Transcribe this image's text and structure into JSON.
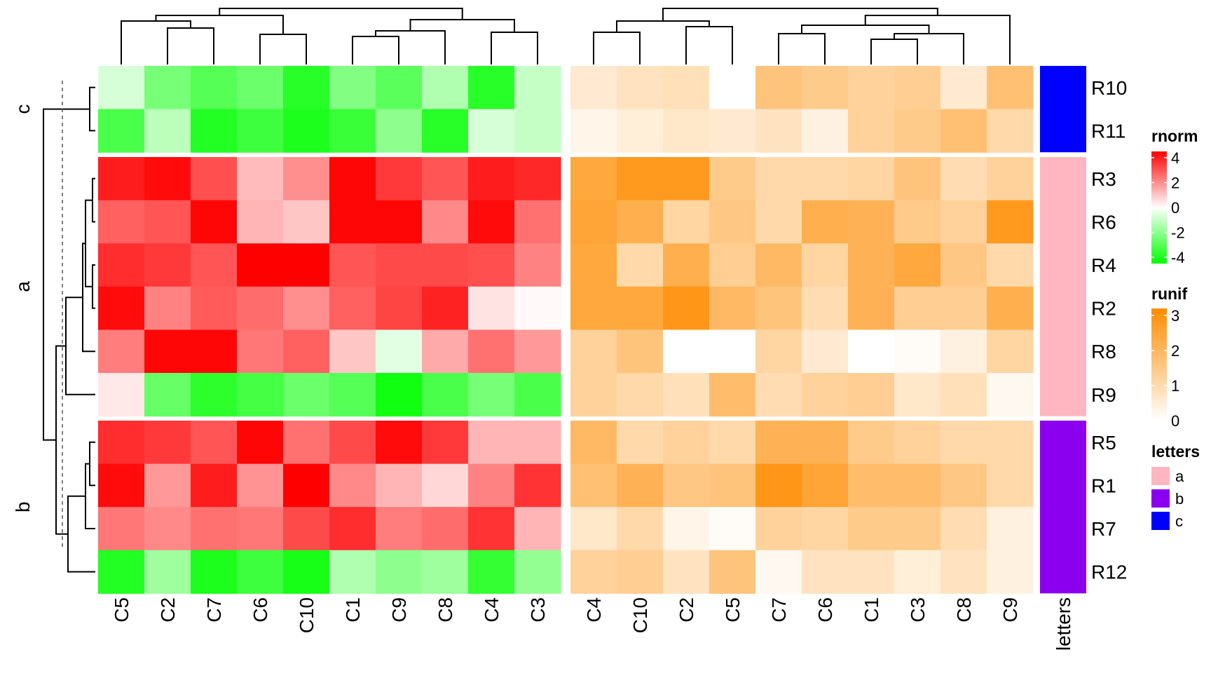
{
  "chart_data": {
    "type": "heatmap",
    "row_labels": [
      "R10",
      "R11",
      "R3",
      "R6",
      "R4",
      "R2",
      "R8",
      "R9",
      "R5",
      "R1",
      "R7",
      "R12"
    ],
    "row_groups": [
      {
        "label": "c",
        "rows": [
          "R10",
          "R11"
        ]
      },
      {
        "label": "a",
        "rows": [
          "R3",
          "R6",
          "R4",
          "R2",
          "R8",
          "R9"
        ]
      },
      {
        "label": "b",
        "rows": [
          "R5",
          "R1",
          "R7",
          "R12"
        ]
      }
    ],
    "heatmaps": [
      {
        "name": "rnorm",
        "columns": [
          "C5",
          "C2",
          "C7",
          "C6",
          "C10",
          "C1",
          "C9",
          "C8",
          "C4",
          "C3"
        ],
        "colors": {
          "low": "#00ff00",
          "mid": "#ffffff",
          "high": "#ff0000"
        },
        "range": [
          -4.5,
          4.5
        ],
        "legend_ticks": [
          4,
          2,
          0,
          -2,
          -4
        ],
        "values": [
          [
            -0.7,
            -2.4,
            -3.0,
            -2.6,
            -3.8,
            -2.2,
            -2.9,
            -1.4,
            -3.8,
            -1.0
          ],
          [
            -3.2,
            -1.2,
            -3.9,
            -3.4,
            -4.0,
            -3.5,
            -2.0,
            -3.8,
            -0.7,
            -1.0
          ],
          [
            4.0,
            4.3,
            3.1,
            1.2,
            2.0,
            4.4,
            3.5,
            3.0,
            4.0,
            3.8
          ],
          [
            2.8,
            3.0,
            4.4,
            1.3,
            1.0,
            4.4,
            4.4,
            2.1,
            4.3,
            2.5
          ],
          [
            3.7,
            3.5,
            3.0,
            4.5,
            4.5,
            3.0,
            3.2,
            3.2,
            3.1,
            2.2
          ],
          [
            4.3,
            2.2,
            2.9,
            2.6,
            2.0,
            2.8,
            3.3,
            3.9,
            0.5,
            0.1
          ],
          [
            2.3,
            4.4,
            4.4,
            2.4,
            2.8,
            1.0,
            -0.5,
            1.5,
            2.5,
            1.8
          ],
          [
            0.4,
            -2.7,
            -3.7,
            -3.3,
            -2.6,
            -3.0,
            -4.2,
            -3.2,
            -2.4,
            -3.2
          ],
          [
            3.7,
            3.5,
            3.0,
            4.4,
            2.5,
            3.2,
            4.3,
            3.5,
            1.3,
            1.3
          ],
          [
            4.3,
            1.8,
            4.0,
            1.9,
            4.5,
            2.1,
            1.3,
            0.7,
            2.2,
            3.6
          ],
          [
            2.4,
            2.1,
            2.5,
            2.4,
            3.2,
            3.7,
            2.3,
            2.6,
            3.6,
            1.3
          ],
          [
            -3.9,
            -1.7,
            -4.0,
            -3.4,
            -4.1,
            -1.4,
            -2.0,
            -1.7,
            -3.6,
            -1.9
          ]
        ]
      },
      {
        "name": "runif",
        "columns": [
          "C4",
          "C10",
          "C2",
          "C5",
          "C7",
          "C6",
          "C1",
          "C3",
          "C8",
          "C9"
        ],
        "colors": {
          "low": "#ffffff",
          "high": "#ff8c00"
        },
        "range": [
          0,
          3.3
        ],
        "legend_ticks": [
          3,
          2,
          1,
          0
        ],
        "values": [
          [
            0.6,
            0.8,
            0.9,
            0.0,
            1.7,
            1.5,
            1.3,
            1.4,
            0.6,
            1.8
          ],
          [
            0.3,
            0.5,
            0.7,
            0.6,
            0.8,
            0.4,
            1.3,
            1.5,
            1.8,
            1.1
          ],
          [
            2.5,
            2.9,
            2.9,
            1.5,
            1.1,
            1.1,
            1.2,
            1.7,
            1.0,
            1.3
          ],
          [
            2.6,
            2.3,
            1.2,
            1.6,
            1.1,
            2.3,
            2.2,
            1.5,
            1.3,
            2.9
          ],
          [
            2.5,
            1.1,
            2.3,
            1.4,
            2.0,
            1.2,
            2.2,
            2.5,
            1.6,
            1.1
          ],
          [
            2.5,
            2.5,
            3.0,
            2.0,
            1.7,
            1.0,
            2.2,
            1.4,
            1.4,
            2.3
          ],
          [
            1.3,
            1.7,
            0.0,
            0.0,
            1.2,
            0.6,
            0.0,
            0.1,
            0.4,
            1.2
          ],
          [
            1.3,
            1.1,
            0.9,
            1.9,
            1.0,
            1.3,
            1.4,
            0.7,
            0.9,
            0.2
          ],
          [
            2.0,
            1.1,
            1.3,
            1.1,
            2.2,
            2.2,
            1.5,
            1.3,
            1.1,
            1.1
          ],
          [
            1.8,
            2.2,
            1.6,
            1.7,
            3.0,
            2.6,
            1.9,
            1.9,
            1.6,
            1.1
          ],
          [
            0.7,
            1.1,
            0.3,
            0.1,
            1.3,
            1.2,
            1.5,
            1.5,
            1.0,
            0.4
          ],
          [
            1.3,
            1.4,
            0.8,
            1.7,
            0.2,
            0.8,
            0.8,
            0.5,
            0.8,
            0.4
          ]
        ]
      }
    ],
    "annotation": {
      "name": "letters",
      "colors": {
        "a": "#ffb6c1",
        "b": "#8b00ee",
        "c": "#0000ff"
      },
      "legend_entries": [
        "a",
        "b",
        "c"
      ]
    },
    "legends": [
      "rnorm",
      "runif",
      "letters"
    ],
    "legend_placement": "right",
    "grid": false
  }
}
